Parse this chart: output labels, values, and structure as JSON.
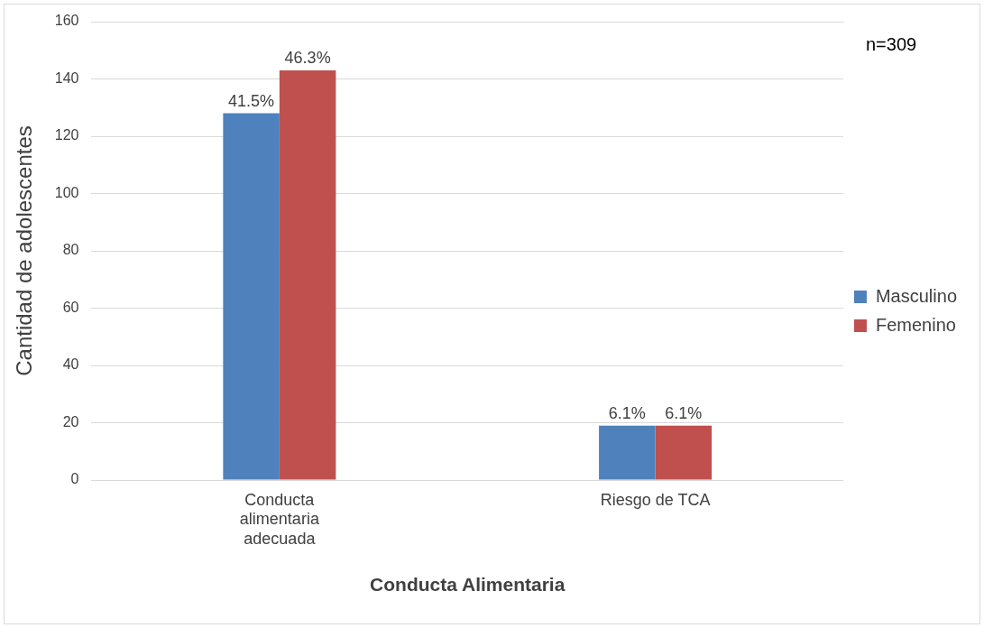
{
  "chart_data": {
    "type": "bar",
    "xlabel": "Conducta Alimentaria",
    "ylabel": "Cantidad de adolescentes",
    "categories": [
      "Conducta alimentaria adecuada",
      "Riesgo de TCA"
    ],
    "series": [
      {
        "name": "Masculino",
        "color": "#4f81bd",
        "values": [
          128,
          19
        ]
      },
      {
        "name": "Femenino",
        "color": "#c0504d",
        "values": [
          143,
          19
        ]
      }
    ],
    "ylim": [
      0,
      160
    ],
    "yticks": [
      0,
      20,
      40,
      60,
      80,
      100,
      120,
      140,
      160
    ],
    "grid": "y",
    "legend": "right",
    "annotations": [
      "n=309",
      {
        "text": "41.5%",
        "x": "Conducta alimentaria adecuada",
        "y": 128
      },
      {
        "text": "46.3%",
        "x": "Conducta alimentaria adecuada",
        "y": 143
      },
      {
        "text": "6.1%",
        "x": "Riesgo de TCA",
        "y": 19
      },
      {
        "text": "6.1%",
        "x": "Riesgo de TCA",
        "y": 19
      }
    ]
  }
}
